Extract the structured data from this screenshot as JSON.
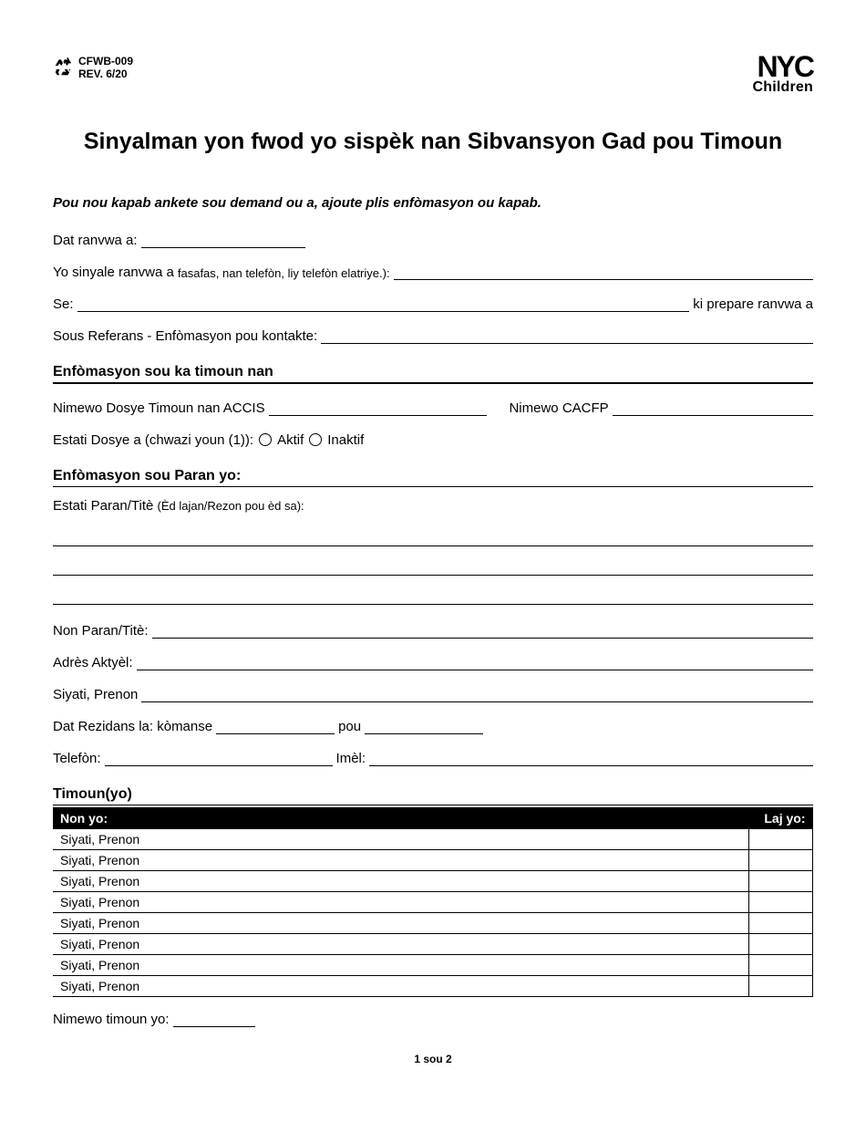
{
  "header": {
    "form_id": "CFWB-009",
    "revision": "REV. 6/20",
    "logo_main": "NYC",
    "logo_sub": "Children"
  },
  "title": "Sinyalman yon fwod yo sispèk nan Sibvansyon Gad pou Timoun",
  "intro": "Pou nou kapab ankete sou demand ou a, ajoute plis enfòmasyon ou kapab.",
  "fields": {
    "date_label": "Dat ranvwa a:",
    "reported_label": "Yo sinyale ranvwa a ",
    "reported_note": "fasafas, nan telefòn, liy telefòn elatriye.):",
    "se_label": "Se:",
    "se_suffix": " ki prepare ranvwa a",
    "source_label": "Sous Referans - Enfòmasyon pou kontakte:"
  },
  "section_case": {
    "heading": "Enfòmasyon sou ka timoun nan",
    "accis_label": "Nimewo Dosye Timoun nan ACCIS",
    "cacfp_label": "Nimewo CACFP",
    "status_label": "Estati Dosye a (chwazi youn (1)):",
    "status_active": "Aktif",
    "status_inactive": "Inaktif"
  },
  "section_parent": {
    "heading": "Enfòmasyon sou Paran yo:",
    "status_label": "Estati Paran/Titè ",
    "status_note": "(Èd lajan/Rezon pou èd sa):",
    "name_label": "Non Paran/Titè:",
    "address_label": "Adrès Aktyèl:",
    "city_label": "Siyati, Prenon",
    "residence_label": "Dat Rezidans la: kòmanse",
    "residence_to": "pou",
    "phone_label": "Telefòn:",
    "email_label": "Imèl:"
  },
  "section_children": {
    "heading": "Timoun(yo)",
    "col_name": "Non yo:",
    "col_age": "Laj yo:",
    "row_label": "Siyati, Prenon",
    "count_label": "Nimewo timoun yo:"
  },
  "footer": {
    "page": "1 sou 2"
  },
  "colors": {
    "text": "#000000",
    "bg": "#ffffff",
    "table_header_bg": "#000000",
    "table_header_fg": "#ffffff"
  }
}
